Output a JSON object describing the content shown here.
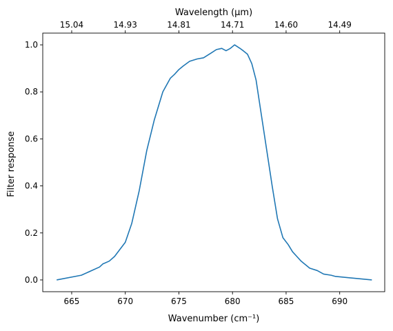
{
  "chart_data": {
    "type": "line",
    "title": "",
    "xlabel": "Wavenumber (cm⁻¹)",
    "ylabel": "Filter response",
    "top_xlabel": "Wavelength (μm)",
    "xlim": [
      662.3,
      694.2
    ],
    "ylim": [
      -0.05,
      1.05
    ],
    "x_ticks": [
      665,
      670,
      675,
      680,
      685,
      690
    ],
    "y_ticks": [
      0.0,
      0.2,
      0.4,
      0.6,
      0.8,
      1.0
    ],
    "top_ticks": [
      {
        "x": 665,
        "label": "15.04"
      },
      {
        "x": 670,
        "label": "14.93"
      },
      {
        "x": 675,
        "label": "14.81"
      },
      {
        "x": 680,
        "label": "14.71"
      },
      {
        "x": 685,
        "label": "14.60"
      },
      {
        "x": 690,
        "label": "14.49"
      }
    ],
    "grid": false,
    "series": [
      {
        "color": "#1f77b4",
        "x": [
          663.6,
          665.9,
          667.6,
          667.9,
          668.5,
          669.0,
          669.5,
          670.0,
          670.6,
          671.3,
          672.0,
          672.7,
          673.5,
          674.2,
          674.6,
          675.0,
          675.4,
          676.0,
          676.7,
          677.3,
          678.0,
          678.5,
          679.0,
          679.4,
          679.8,
          680.2,
          680.7,
          681.0,
          681.4,
          681.8,
          682.2,
          682.7,
          683.2,
          683.7,
          684.2,
          684.7,
          685.2,
          685.6,
          686.0,
          686.4,
          686.8,
          687.2,
          687.9,
          688.5,
          689.2,
          689.6,
          693.0
        ],
        "y": [
          0.0,
          0.02,
          0.055,
          0.068,
          0.08,
          0.1,
          0.13,
          0.16,
          0.24,
          0.38,
          0.55,
          0.68,
          0.8,
          0.858,
          0.875,
          0.895,
          0.91,
          0.93,
          0.94,
          0.945,
          0.965,
          0.98,
          0.985,
          0.975,
          0.985,
          1.0,
          0.985,
          0.975,
          0.96,
          0.92,
          0.85,
          0.7,
          0.55,
          0.4,
          0.26,
          0.18,
          0.15,
          0.12,
          0.1,
          0.08,
          0.065,
          0.05,
          0.04,
          0.025,
          0.02,
          0.015,
          0.0
        ]
      }
    ]
  }
}
